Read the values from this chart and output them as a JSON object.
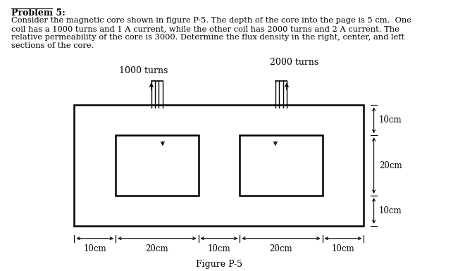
{
  "title": "Problem 5:",
  "description_lines": [
    "Consider the magnetic core shown in figure P-5. The depth of the core into the page is 5 cm.  One",
    "coil has a 1000 turns and 1 A current, while the other coil has 2000 turns and 2 A current. The",
    "relative permeability of the core is 3000. Determine the flux density in the right, center, and left",
    "sections of the core."
  ],
  "figure_label": "Figure P-5",
  "label_1000": "1000 turns",
  "label_2000": "2000 turns",
  "dim_top_10cm": "10cm",
  "dim_mid_20cm": "20cm",
  "dim_bot_10cm": "10cm",
  "dim_h_10cm_left": "10cm",
  "dim_h_20cm_left": "20cm",
  "dim_h_10cm_mid": "10cm",
  "dim_h_20cm_right": "20cm",
  "dim_h_10cm_right": "10cm",
  "bg_color": "#ffffff",
  "line_color": "#000000",
  "text_color": "#000000",
  "font_family": "serif",
  "ox": 118,
  "oy": 150,
  "ow": 460,
  "oh": 172
}
